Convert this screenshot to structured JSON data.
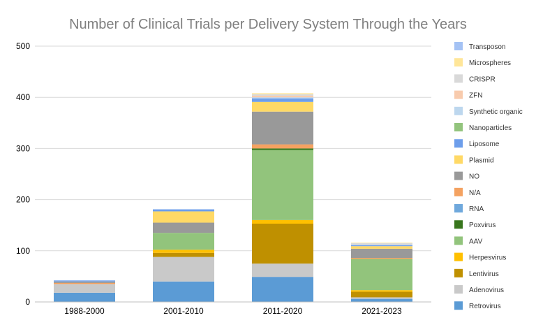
{
  "chart_data": {
    "type": "bar",
    "stacked": true,
    "title": "Number of Clinical Trials per Delivery System Through the Years",
    "xlabel": "",
    "ylabel": "",
    "ylim": [
      0,
      500
    ],
    "yticks": [
      0,
      100,
      200,
      300,
      400,
      500
    ],
    "grid": true,
    "legend_position": "right",
    "categories": [
      "1988-2000",
      "2001-2010",
      "2011-2020",
      "2021-2023"
    ],
    "series": [
      {
        "name": "Retrovirus",
        "color": "#5b9bd5",
        "values": [
          18,
          40,
          49,
          6
        ]
      },
      {
        "name": "Adenovirus",
        "color": "#c9c9c9",
        "values": [
          17,
          48,
          26,
          3
        ]
      },
      {
        "name": "Lentivirus",
        "color": "#bf9000",
        "values": [
          0,
          8,
          78,
          11
        ]
      },
      {
        "name": "Herpesvirus",
        "color": "#ffc000",
        "values": [
          0,
          6,
          7,
          3
        ]
      },
      {
        "name": "AAV",
        "color": "#92c47c",
        "values": [
          0,
          33,
          137,
          61
        ]
      },
      {
        "name": "Poxvirus",
        "color": "#38761d",
        "values": [
          0,
          0,
          3,
          0
        ]
      },
      {
        "name": "RNA",
        "color": "#6fa8dc",
        "values": [
          0,
          0,
          0,
          0
        ]
      },
      {
        "name": "N/A",
        "color": "#f4a261",
        "values": [
          2,
          0,
          8,
          2
        ]
      },
      {
        "name": "NO",
        "color": "#999999",
        "values": [
          3,
          20,
          64,
          18
        ]
      },
      {
        "name": "Plasmid",
        "color": "#ffd966",
        "values": [
          0,
          22,
          19,
          5
        ]
      },
      {
        "name": "Liposome",
        "color": "#6d9eeb",
        "values": [
          2,
          4,
          7,
          2
        ]
      },
      {
        "name": "Nanoparticles",
        "color": "#93c47d",
        "values": [
          0,
          0,
          0,
          0
        ]
      },
      {
        "name": "Synthetic organic",
        "color": "#bdd7ee",
        "values": [
          0,
          0,
          2,
          1
        ]
      },
      {
        "name": "ZFN",
        "color": "#f8cbad",
        "values": [
          0,
          0,
          3,
          0
        ]
      },
      {
        "name": "CRISPR",
        "color": "#d9d9d9",
        "values": [
          0,
          0,
          3,
          3
        ]
      },
      {
        "name": "Microspheres",
        "color": "#ffe699",
        "values": [
          0,
          0,
          2,
          1
        ]
      },
      {
        "name": "Transposon",
        "color": "#a4c2f4",
        "values": [
          0,
          0,
          0,
          0
        ]
      }
    ]
  }
}
